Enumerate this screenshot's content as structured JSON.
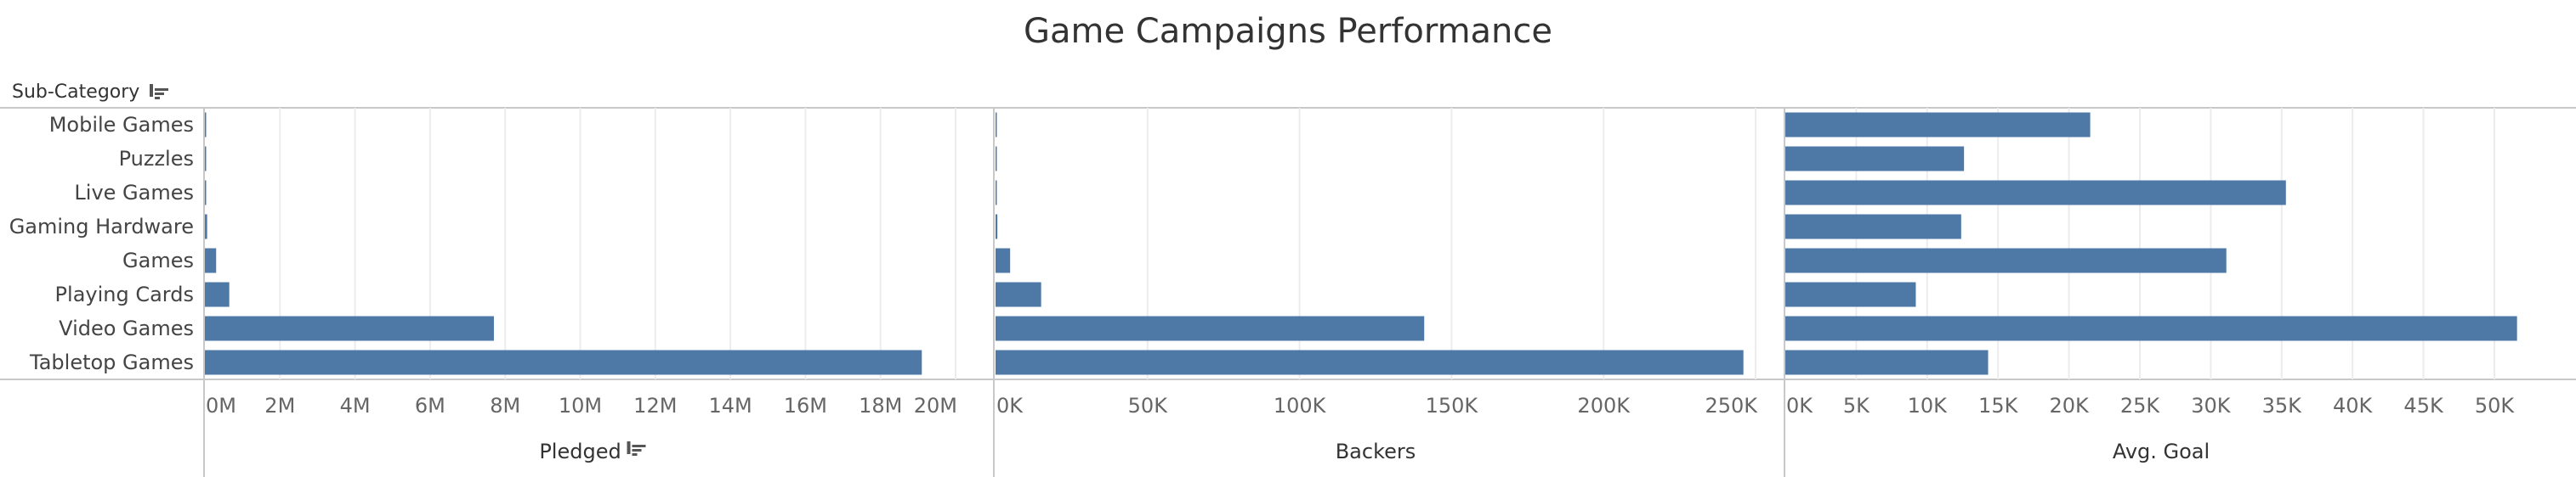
{
  "header": {
    "title": "Game Campaigns Performance",
    "row_header": "Sub-Category",
    "sort_icon": "sort-descending-icon"
  },
  "chart_data": {
    "type": "bar",
    "orientation": "horizontal",
    "categories": [
      "Mobile Games",
      "Puzzles",
      "Live Games",
      "Gaming Hardware",
      "Games",
      "Playing Cards",
      "Video Games",
      "Tabletop Games"
    ],
    "bar_color": "#4e79a7",
    "panels": [
      {
        "name": "Pledged",
        "xlabel": "Pledged",
        "sorted": true,
        "xlim": [
          0,
          20000000
        ],
        "tick_values": [
          0,
          2000000,
          4000000,
          6000000,
          8000000,
          10000000,
          12000000,
          14000000,
          16000000,
          18000000,
          20000000
        ],
        "tick_labels": [
          "0M",
          "2M",
          "4M",
          "6M",
          "8M",
          "10M",
          "12M",
          "14M",
          "16M",
          "18M",
          "20M"
        ],
        "values": [
          5000,
          3000,
          2000,
          60000,
          300000,
          650000,
          7700000,
          19100000
        ]
      },
      {
        "name": "Backers",
        "xlabel": "Backers",
        "sorted": false,
        "xlim": [
          0,
          250000
        ],
        "tick_values": [
          0,
          50000,
          100000,
          150000,
          200000,
          250000
        ],
        "tick_labels": [
          "0K",
          "50K",
          "100K",
          "150K",
          "200K",
          "250K"
        ],
        "values": [
          100,
          80,
          50,
          600,
          4800,
          15000,
          141000,
          246000
        ]
      },
      {
        "name": "Avg. Goal",
        "xlabel": "Avg. Goal",
        "sorted": false,
        "xlim": [
          0,
          53000
        ],
        "tick_values": [
          0,
          5000,
          10000,
          15000,
          20000,
          25000,
          30000,
          35000,
          40000,
          45000,
          50000
        ],
        "tick_labels": [
          "0K",
          "5K",
          "10K",
          "15K",
          "20K",
          "25K",
          "30K",
          "35K",
          "40K",
          "45K",
          "50K"
        ],
        "values": [
          21500,
          12600,
          35300,
          12400,
          31100,
          9200,
          51600,
          14300
        ]
      }
    ],
    "grid": true
  }
}
